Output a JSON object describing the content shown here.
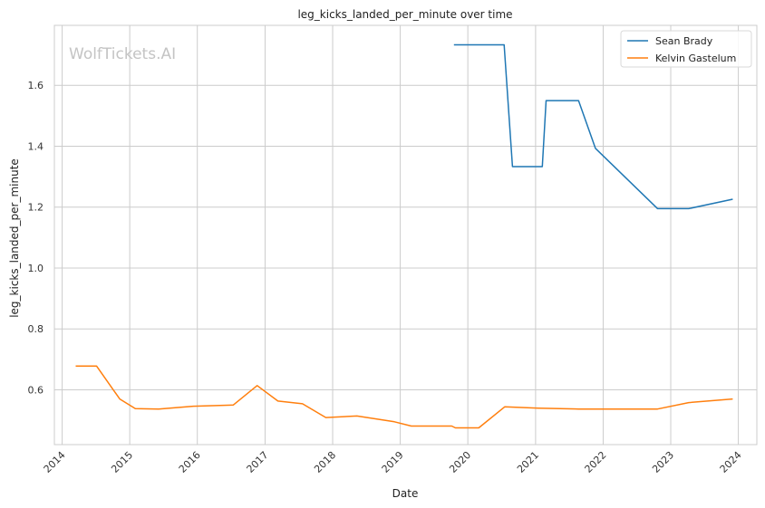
{
  "chart_data": {
    "type": "line",
    "title": "leg_kicks_landed_per_minute over time",
    "xlabel": "Date",
    "ylabel": "leg_kicks_landed_per_minute",
    "watermark": "WolfTickets.AI",
    "x_ticks": [
      "2014",
      "2015",
      "2016",
      "2017",
      "2018",
      "2019",
      "2020",
      "2021",
      "2022",
      "2023",
      "2024"
    ],
    "y_ticks": [
      "0.6",
      "0.8",
      "1.0",
      "1.2",
      "1.4",
      "1.6"
    ],
    "xlim": [
      "2013-11-20",
      "2024-04-10"
    ],
    "ylim": [
      0.42,
      1.797
    ],
    "grid": true,
    "legend_position": "top-right",
    "colors": {
      "Sean Brady": "#1f77b4",
      "Kelvin Gastelum": "#ff7f0e"
    },
    "series": [
      {
        "name": "Sean Brady",
        "color": "#1f77b4",
        "points": [
          {
            "x": "2019-10-18",
            "y": 1.733
          },
          {
            "x": "2020-07-15",
            "y": 1.733
          },
          {
            "x": "2020-08-29",
            "y": 1.333
          },
          {
            "x": "2021-02-06",
            "y": 1.333
          },
          {
            "x": "2021-02-27",
            "y": 1.55
          },
          {
            "x": "2021-08-21",
            "y": 1.55
          },
          {
            "x": "2021-11-20",
            "y": 1.393
          },
          {
            "x": "2022-10-22",
            "y": 1.195
          },
          {
            "x": "2023-04-08",
            "y": 1.195
          },
          {
            "x": "2023-12-02",
            "y": 1.226
          }
        ]
      },
      {
        "name": "Kelvin Gastelum",
        "color": "#ff7f0e",
        "points": [
          {
            "x": "2014-03-15",
            "y": 0.678
          },
          {
            "x": "2014-07-06",
            "y": 0.678
          },
          {
            "x": "2014-11-08",
            "y": 0.57
          },
          {
            "x": "2015-01-31",
            "y": 0.538
          },
          {
            "x": "2015-06-06",
            "y": 0.537
          },
          {
            "x": "2015-12-10",
            "y": 0.546
          },
          {
            "x": "2016-07-13",
            "y": 0.55
          },
          {
            "x": "2016-11-19",
            "y": 0.614
          },
          {
            "x": "2017-03-11",
            "y": 0.563
          },
          {
            "x": "2017-07-22",
            "y": 0.554
          },
          {
            "x": "2017-11-25",
            "y": 0.509
          },
          {
            "x": "2018-05-12",
            "y": 0.514
          },
          {
            "x": "2018-12-01",
            "y": 0.495
          },
          {
            "x": "2019-03-02",
            "y": 0.481
          },
          {
            "x": "2019-10-06",
            "y": 0.481
          },
          {
            "x": "2019-10-26",
            "y": 0.475
          },
          {
            "x": "2020-02-29",
            "y": 0.475
          },
          {
            "x": "2020-07-18",
            "y": 0.544
          },
          {
            "x": "2021-01-16",
            "y": 0.54
          },
          {
            "x": "2021-08-21",
            "y": 0.537
          },
          {
            "x": "2022-10-22",
            "y": 0.537
          },
          {
            "x": "2023-04-08",
            "y": 0.558
          },
          {
            "x": "2023-12-02",
            "y": 0.57
          }
        ]
      }
    ]
  }
}
